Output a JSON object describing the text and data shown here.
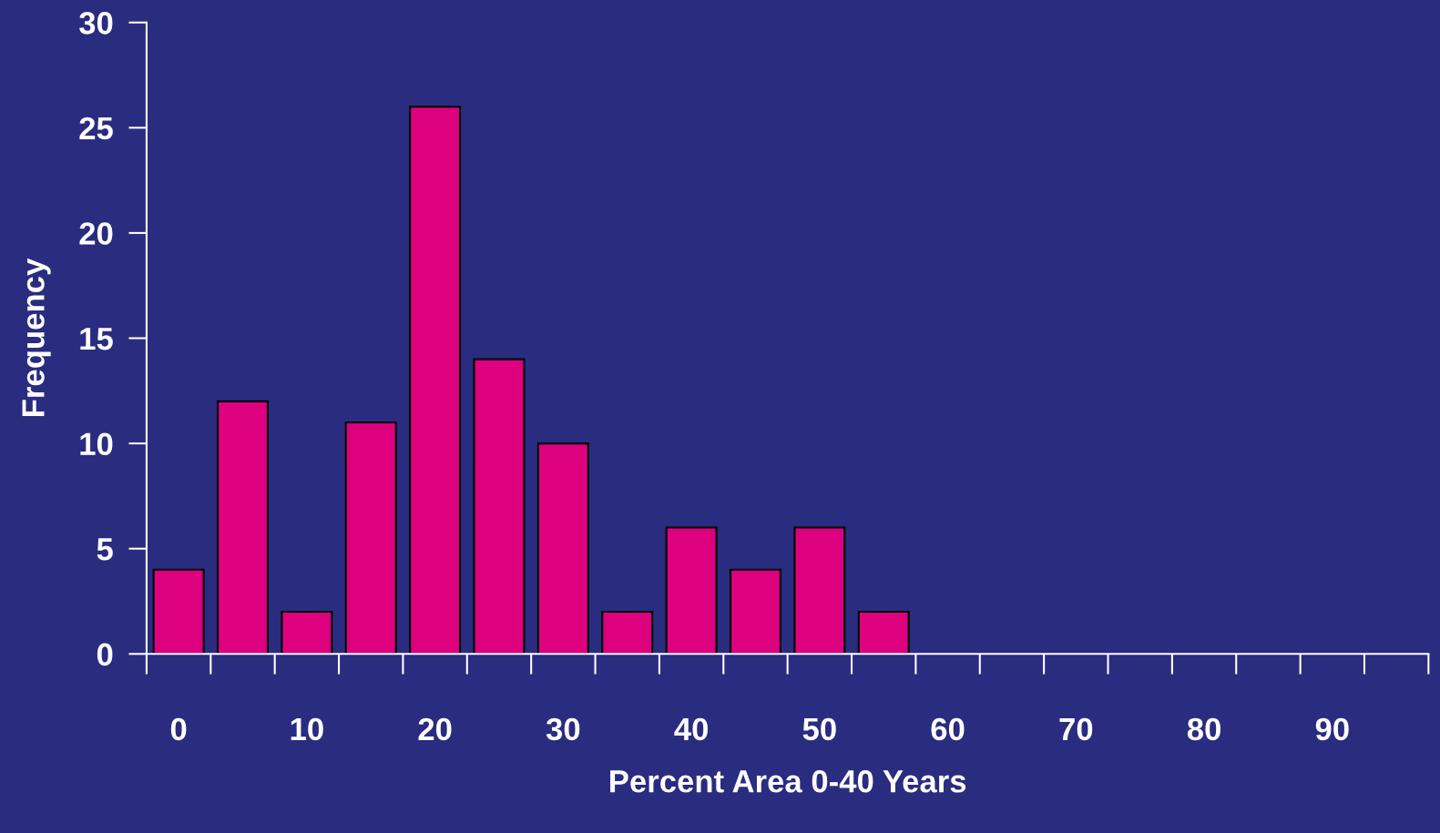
{
  "chart_data": {
    "type": "bar",
    "xlabel": "Percent Area 0-40 Years",
    "ylabel": "Frequency",
    "x": [
      0,
      5,
      10,
      15,
      20,
      25,
      30,
      35,
      40,
      45,
      50,
      55
    ],
    "values": [
      4,
      12,
      2,
      11,
      26,
      14,
      10,
      2,
      6,
      4,
      6,
      2
    ],
    "color": "#dd007f",
    "xlim": [
      -2.5,
      97.5
    ],
    "xticks": [
      0,
      10,
      20,
      30,
      40,
      50,
      60,
      70,
      80,
      90
    ],
    "ylim": [
      0,
      30
    ],
    "yticks": [
      0,
      5,
      10,
      15,
      20,
      25,
      30
    ],
    "grid": false
  }
}
